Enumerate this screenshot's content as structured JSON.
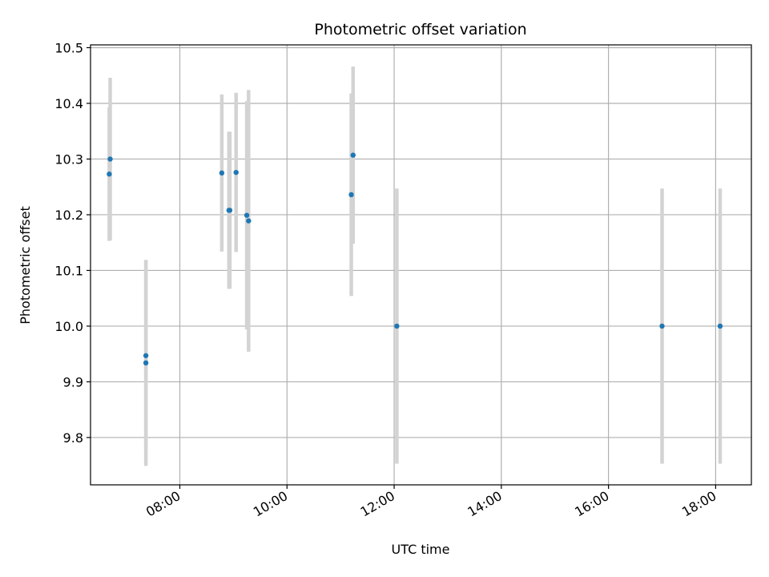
{
  "chart_data": {
    "type": "scatter",
    "title": "Photometric offset variation",
    "xlabel": "UTC time",
    "ylabel": "Photometric offset",
    "x_axis": {
      "kind": "time",
      "range": [
        "06:20",
        "18:40"
      ],
      "ticks": [
        "08:00",
        "10:00",
        "12:00",
        "14:00",
        "16:00",
        "18:00"
      ]
    },
    "y_axis": {
      "range": [
        9.715,
        10.505
      ],
      "ticks": [
        9.8,
        9.9,
        10.0,
        10.1,
        10.2,
        10.3,
        10.4,
        10.5
      ],
      "tick_labels": [
        "9.8",
        "9.9",
        "10.0",
        "10.1",
        "10.2",
        "10.3",
        "10.4",
        "10.5"
      ]
    },
    "grid": true,
    "marker_color": "#1f77b4",
    "errorbar_color": "#d3d3d3",
    "points": [
      {
        "x": "06:41",
        "y": 10.273,
        "err": 0.12
      },
      {
        "x": "06:42",
        "y": 10.3,
        "err": 0.146
      },
      {
        "x": "07:22",
        "y": 9.947,
        "err": 0.17
      },
      {
        "x": "07:22",
        "y": 9.934,
        "err": 0.185
      },
      {
        "x": "08:47",
        "y": 10.275,
        "err": 0.141
      },
      {
        "x": "08:55",
        "y": 10.208,
        "err": 0.141
      },
      {
        "x": "08:56",
        "y": 10.208,
        "err": 0.141
      },
      {
        "x": "09:03",
        "y": 10.276,
        "err": 0.143
      },
      {
        "x": "09:15",
        "y": 10.199,
        "err": 0.205
      },
      {
        "x": "09:17",
        "y": 10.189,
        "err": 0.235
      },
      {
        "x": "11:12",
        "y": 10.236,
        "err": 0.182
      },
      {
        "x": "11:14",
        "y": 10.307,
        "err": 0.159
      },
      {
        "x": "12:03",
        "y": 10.0,
        "err": 0.247
      },
      {
        "x": "17:00",
        "y": 10.0,
        "err": 0.247
      },
      {
        "x": "18:05",
        "y": 10.0,
        "err": 0.247
      }
    ]
  }
}
